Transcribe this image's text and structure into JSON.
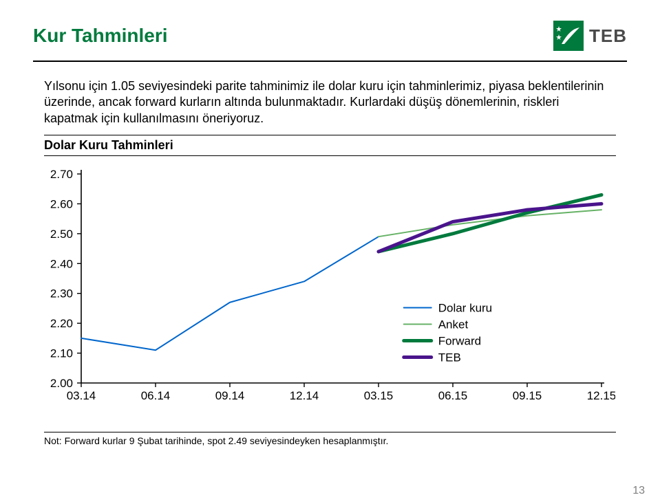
{
  "title": "Kur Tahminleri",
  "logo_text": "TEB",
  "logo_bg": "#007a3d",
  "paragraph": "Yılsonu için 1.05 seviyesindeki parite tahminimiz ile dolar kuru için tahminlerimiz, piyasa beklentilerinin üzerinde, ancak forward kurların altında bulunmaktadır. Kurlardaki düşüş dönemlerinin, riskleri kapatmak için kullanılmasını öneriyoruz.",
  "subtitle": "Dolar Kuru Tahminleri",
  "chart": {
    "type": "line",
    "background_color": "#ffffff",
    "x_labels": [
      "03.14",
      "06.14",
      "09.14",
      "12.14",
      "03.15",
      "06.15",
      "09.15",
      "12.15"
    ],
    "y_ticks": [
      2.0,
      2.1,
      2.2,
      2.3,
      2.4,
      2.5,
      2.6,
      2.7
    ],
    "ylim": [
      2.0,
      2.7
    ],
    "axis_color": "#000000",
    "tick_fontsize": 17,
    "legend": {
      "position": "inside-right-lower",
      "fontsize": 17,
      "items": [
        {
          "label": "Dolar kuru",
          "color": "#0066cc",
          "width": 2
        },
        {
          "label": "Anket",
          "color": "#66b266",
          "width": 2
        },
        {
          "label": "Forward",
          "color": "#007a3d",
          "width": 5
        },
        {
          "label": "TEB",
          "color": "#4a148c",
          "width": 5
        }
      ]
    },
    "series": [
      {
        "name": "Dolar kuru",
        "color": "#0066cc",
        "width": 2,
        "x": [
          "03.14",
          "06.14",
          "09.14",
          "12.14",
          "03.15"
        ],
        "y": [
          2.15,
          2.11,
          2.27,
          2.34,
          2.49
        ]
      },
      {
        "name": "Anket",
        "color": "#66b266",
        "width": 2,
        "x": [
          "03.15",
          "06.15",
          "09.15",
          "12.15"
        ],
        "y": [
          2.49,
          2.53,
          2.56,
          2.58
        ]
      },
      {
        "name": "Forward",
        "color": "#007a3d",
        "width": 5,
        "x": [
          "03.15",
          "06.15",
          "09.15",
          "12.15"
        ],
        "y": [
          2.44,
          2.5,
          2.57,
          2.63
        ]
      },
      {
        "name": "TEB",
        "color": "#4a148c",
        "width": 5,
        "x": [
          "03.15",
          "06.15",
          "09.15",
          "12.15"
        ],
        "y": [
          2.44,
          2.54,
          2.58,
          2.6
        ]
      }
    ]
  },
  "footnote": "Not: Forward kurlar 9 Şubat tarihinde, spot 2.49 seviyesindeyken hesaplanmıştır.",
  "page_number": "13"
}
